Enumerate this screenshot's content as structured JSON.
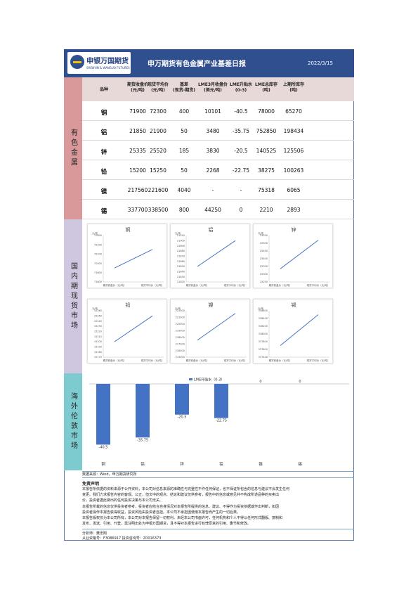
{
  "header": {
    "logo_name": "申银万国期货",
    "logo_sub": "SHENYIN & WANGUO FUTURES",
    "title": "申万期货有色金属产业基差日报",
    "date": "2022/3/15"
  },
  "sections": {
    "nonferrous": "有色金属",
    "domestic": "国内期现货市场",
    "overseas": "海外伦敦市场"
  },
  "table": {
    "headers": [
      "品种",
      "期货收盘价\n(元/吨)",
      "现货平均价\n(元/吨)",
      "基差\n(现货-期货)",
      "LME3月收盘价\n(美元/吨)",
      "LME升贴水\n(0-3)",
      "LME总库存\n(吨)",
      "上期所库存\n(吨)"
    ],
    "rows": [
      [
        "铜",
        "71900",
        "72300",
        "400",
        "10101",
        "-40.5",
        "78000",
        "65270"
      ],
      [
        "铝",
        "21850",
        "21900",
        "50",
        "3480",
        "-35.75",
        "752850",
        "198434"
      ],
      [
        "锌",
        "25335",
        "25520",
        "185",
        "3830",
        "-20.5",
        "140525",
        "125506"
      ],
      [
        "铅",
        "15200",
        "15250",
        "50",
        "2268",
        "-22.75",
        "38275",
        "100263"
      ],
      [
        "镍",
        "217560",
        "221600",
        "4040",
        "-",
        "-",
        "75318",
        "6065"
      ],
      [
        "锡",
        "337700",
        "338500",
        "800",
        "44250",
        "0",
        "2210",
        "2893"
      ]
    ]
  },
  "colors": {
    "header_bg": "#2f4f8f",
    "line": "#4472c4",
    "bar": "#4472c4",
    "nonferrous_bg": "#d9989a",
    "domestic_bg": "#cfc6e0",
    "overseas_bg": "#7ecbcf"
  },
  "chart_data": [
    {
      "type": "line",
      "title": "铜",
      "unit": "元/吨",
      "x": [
        "期货收盘价（元/吨）",
        "现货平均价（元/吨）"
      ],
      "values": [
        71900,
        72300
      ],
      "ylim": [
        71600,
        72600
      ],
      "yticks": [
        "71600",
        "71800",
        "72000",
        "72200",
        "72400",
        "72600"
      ]
    },
    {
      "type": "line",
      "title": "铝",
      "unit": "元/吨",
      "x": [
        "期货收盘价（元/吨）",
        "现货平均价（元/吨）"
      ],
      "values": [
        21850,
        21900
      ],
      "ylim": [
        21820,
        21910
      ],
      "yticks": [
        "21820",
        "21830",
        "21840",
        "21850",
        "21860",
        "21870",
        "21880",
        "21890",
        "21900",
        "21910"
      ]
    },
    {
      "type": "line",
      "title": "锌",
      "unit": "元/吨",
      "x": [
        "期货收盘价（元/吨）",
        "现货平均价（元/吨）"
      ],
      "values": [
        25335,
        25520
      ],
      "ylim": [
        25250,
        25550
      ],
      "yticks": [
        "25250",
        "25300",
        "25350",
        "25400",
        "25450",
        "25500",
        "25550"
      ]
    },
    {
      "type": "line",
      "title": "铅",
      "unit": "元/吨",
      "x": [
        "期货收盘价（元/吨）",
        "现货平均价（元/吨）"
      ],
      "values": [
        15200,
        15250
      ],
      "ylim": [
        15170,
        15260
      ],
      "yticks": [
        "15170",
        "15180",
        "15190",
        "15200",
        "15210",
        "15220",
        "15230",
        "15240",
        "15250",
        "15260"
      ]
    },
    {
      "type": "line",
      "title": "镍",
      "unit": "元/吨",
      "x": [
        "期货收盘价（元/吨）",
        "现货平均价（元/吨）"
      ],
      "values": [
        217560,
        221600
      ],
      "ylim": [
        215000,
        222000
      ],
      "yticks": [
        "215000",
        "216000",
        "217000",
        "218000",
        "219000",
        "220000",
        "221000",
        "222000"
      ]
    },
    {
      "type": "line",
      "title": "锡",
      "unit": "元/吨",
      "x": [
        "期货收盘价（元/吨）",
        "现货平均价（元/吨）"
      ],
      "values": [
        337700,
        338500
      ],
      "ylim": [
        337400,
        338600
      ],
      "yticks": [
        "337400",
        "337600",
        "337800",
        "338000",
        "338200",
        "338400",
        "338600"
      ]
    },
    {
      "type": "bar",
      "title": "",
      "legend": "LME升贴水（0-3）",
      "categories": [
        "铜",
        "铝",
        "锌",
        "铅",
        "镍",
        "锡"
      ],
      "values": [
        -40.5,
        -35.75,
        -20.5,
        -22.75,
        0,
        0
      ],
      "labels": [
        "-40.5",
        "-35.75",
        "-20.5",
        "-22.75",
        "0",
        "0"
      ],
      "ylim": [
        -45,
        0
      ]
    }
  ],
  "footer": {
    "source": "数据来源：Wind，申万期货研究所",
    "disclaimer_title": "免责声明",
    "disclaimer_lines": [
      "本报告所依据的资料来源于公开资料，本公司对信息来源的准确性与完整性不作任何保证，也不保证所包含的信息与建议不会发生任何",
      "变更。我们力求报告内容的客观、公正，但文中的观点、结论和建议仅供参考，报告中的信息或意见并不构成所述品种的买卖出",
      "价，投资者据此做出的任何投资决策与本公司无关。",
      "本报告所载的信息仅供投资者参考，投资者应结合自身情况对本报告所提供的信息、建议、不得作为投资依据或作出判断，如因",
      "投资者操作本报告获得收益，投资风险由投资者自担。本公司不承担因使用本报告而产生的一切后果。",
      "本报告版权仅为本公司所有，本公司对本报告保留一切权利。未经本公司书面许可，任何机构和个人不得以任何形式翻版、复制和",
      "发布、发送、引用、刊登，需注明出处为申银万国期货，且不得对本报告进行有悖原意的引用、删节和修改。"
    ],
    "analyst": "分析师：樊忠刚",
    "license": "从业资格号：F3086917  投资咨询号：Z0016373"
  }
}
